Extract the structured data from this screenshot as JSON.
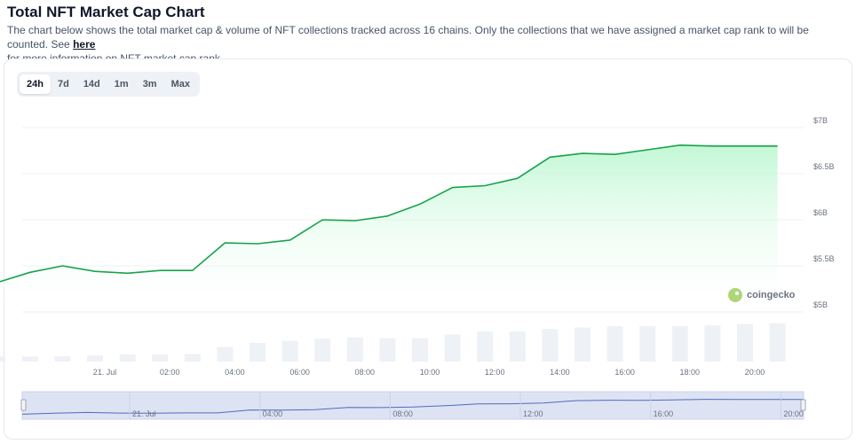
{
  "header": {
    "title": "Total NFT Market Cap Chart",
    "description": "The chart below shows the total market cap & volume of NFT collections tracked across 16 chains. Only the collections that we have assigned a market cap rank to will be counted. See",
    "link_text": "here",
    "description_tail": "for more information on NFT market cap rank."
  },
  "tabs": [
    {
      "label": "24h",
      "active": true
    },
    {
      "label": "7d",
      "active": false
    },
    {
      "label": "14d",
      "active": false
    },
    {
      "label": "1m",
      "active": false
    },
    {
      "label": "3m",
      "active": false
    },
    {
      "label": "Max",
      "active": false
    }
  ],
  "watermark": "coingecko",
  "colors": {
    "line": "#16a34a",
    "area_top": "#bbf7d0",
    "volume_bar": "#eef1f6",
    "navigator_fill": "#dde3f3",
    "navigator_line": "#4f6bbd"
  },
  "chart_data": {
    "type": "line",
    "title": "",
    "xlabel": "",
    "ylabel": "",
    "y_ticks": [
      "$5B",
      "$5.5B",
      "$6B",
      "$6.5B",
      "$7B"
    ],
    "y_tick_values": [
      5.0,
      5.5,
      6.0,
      6.5,
      7.0
    ],
    "ylim": [
      5.0,
      7.0
    ],
    "x_ticks": [
      "21. Jul",
      "02:00",
      "04:00",
      "06:00",
      "08:00",
      "10:00",
      "12:00",
      "14:00",
      "16:00",
      "18:00",
      "20:00"
    ],
    "x_tick_hours": [
      0,
      2,
      4,
      6,
      8,
      10,
      12,
      14,
      16,
      18,
      20
    ],
    "navigator_ticks": [
      "21. Jul",
      "04:00",
      "08:00",
      "12:00",
      "16:00",
      "20:00"
    ],
    "navigator_tick_hours": [
      0,
      4,
      8,
      12,
      16,
      20
    ],
    "grid": true,
    "series": [
      {
        "values_hours": [
          -3.3,
          -2.3,
          -1.3,
          -0.3,
          0.7,
          1.7,
          2.7,
          3.7,
          4.7,
          5.7,
          6.7,
          7.7,
          8.7,
          9.7,
          10.7,
          11.7,
          12.7,
          13.7,
          14.7,
          15.7,
          16.7,
          17.7,
          18.7,
          19.7,
          20.7
        ],
        "market_cap_b": [
          5.32,
          5.43,
          5.5,
          5.44,
          5.42,
          5.45,
          5.45,
          5.75,
          5.74,
          5.78,
          6.0,
          5.99,
          6.04,
          6.17,
          6.35,
          6.37,
          6.45,
          6.68,
          6.72,
          6.71,
          6.76,
          6.81,
          6.8,
          6.8,
          6.8
        ],
        "volume_relative": [
          0.12,
          0.12,
          0.13,
          0.15,
          0.17,
          0.17,
          0.18,
          0.35,
          0.45,
          0.5,
          0.55,
          0.58,
          0.56,
          0.56,
          0.65,
          0.72,
          0.72,
          0.78,
          0.82,
          0.85,
          0.85,
          0.85,
          0.87,
          0.9,
          0.92
        ]
      }
    ]
  }
}
